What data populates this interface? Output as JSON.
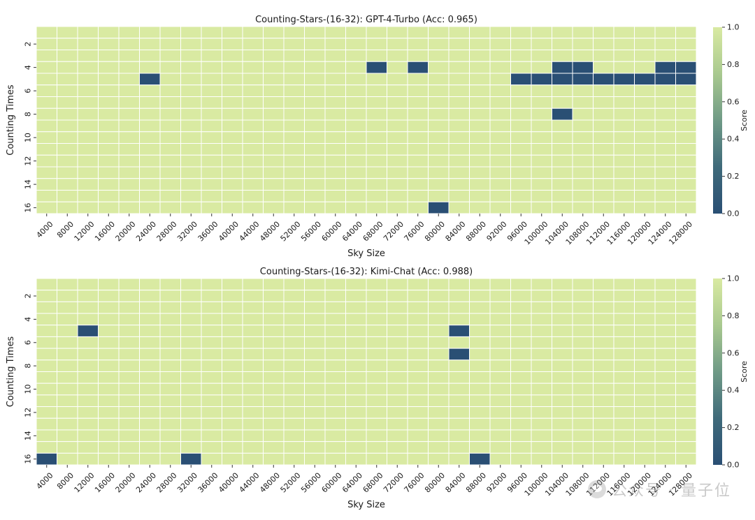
{
  "watermark": {
    "text": "公众号 · 量子位"
  },
  "chart_data": [
    {
      "type": "heatmap",
      "title": "Counting-Stars-(16-32): GPT-4-Turbo (Acc: 0.965)",
      "xlabel": "Sky Size",
      "ylabel": "Counting Times",
      "x": [
        4000,
        8000,
        12000,
        16000,
        20000,
        24000,
        28000,
        32000,
        36000,
        40000,
        44000,
        48000,
        52000,
        56000,
        60000,
        64000,
        68000,
        72000,
        76000,
        80000,
        84000,
        88000,
        92000,
        96000,
        100000,
        104000,
        108000,
        112000,
        116000,
        120000,
        124000,
        128000
      ],
      "y": [
        1,
        2,
        3,
        4,
        5,
        6,
        7,
        8,
        9,
        10,
        11,
        12,
        13,
        14,
        15,
        16
      ],
      "y_tick_labels": [
        "2",
        "4",
        "6",
        "8",
        "10",
        "12",
        "14",
        "16"
      ],
      "colorbar": {
        "label": "Score",
        "range": [
          0.0,
          1.0
        ],
        "ticks": [
          "0.0",
          "0.2",
          "0.4",
          "0.6",
          "0.8",
          "1.0"
        ]
      },
      "default_value": 1,
      "zero_cells": [
        [
          4,
          68000
        ],
        [
          4,
          76000
        ],
        [
          4,
          104000
        ],
        [
          4,
          108000
        ],
        [
          4,
          124000
        ],
        [
          4,
          128000
        ],
        [
          5,
          24000
        ],
        [
          5,
          96000
        ],
        [
          5,
          100000
        ],
        [
          5,
          104000
        ],
        [
          5,
          108000
        ],
        [
          5,
          112000
        ],
        [
          5,
          116000
        ],
        [
          5,
          120000
        ],
        [
          5,
          124000
        ],
        [
          5,
          128000
        ],
        [
          8,
          104000
        ],
        [
          16,
          80000
        ]
      ]
    },
    {
      "type": "heatmap",
      "title": "Counting-Stars-(16-32): Kimi-Chat (Acc: 0.988)",
      "xlabel": "Sky Size",
      "ylabel": "Counting Times",
      "x": [
        4000,
        8000,
        12000,
        16000,
        20000,
        24000,
        28000,
        32000,
        36000,
        40000,
        44000,
        48000,
        52000,
        56000,
        60000,
        64000,
        68000,
        72000,
        76000,
        80000,
        84000,
        88000,
        92000,
        96000,
        100000,
        104000,
        108000,
        112000,
        116000,
        120000,
        124000,
        128000
      ],
      "y": [
        1,
        2,
        3,
        4,
        5,
        6,
        7,
        8,
        9,
        10,
        11,
        12,
        13,
        14,
        15,
        16
      ],
      "y_tick_labels": [
        "2",
        "4",
        "6",
        "8",
        "10",
        "12",
        "14",
        "16"
      ],
      "colorbar": {
        "label": "Score",
        "range": [
          0.0,
          1.0
        ],
        "ticks": [
          "0.0",
          "0.2",
          "0.4",
          "0.6",
          "0.8",
          "1.0"
        ]
      },
      "default_value": 1,
      "zero_cells": [
        [
          5,
          12000
        ],
        [
          5,
          84000
        ],
        [
          7,
          84000
        ],
        [
          16,
          4000
        ],
        [
          16,
          32000
        ],
        [
          16,
          88000
        ]
      ]
    }
  ]
}
